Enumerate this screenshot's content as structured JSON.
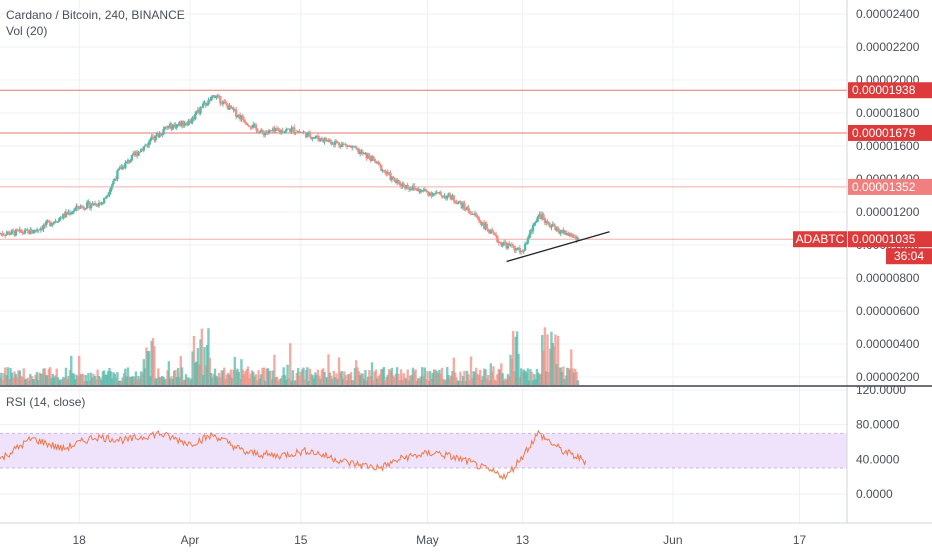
{
  "legend": {
    "main": "Cardano / Bitcoin, 240, BINANCE",
    "volume": "Vol (20)",
    "rsi": "RSI (14, close)"
  },
  "colors": {
    "up": "#53b9a9",
    "down": "#f08f86",
    "level_line": "#f2a4a4",
    "level_label": "#dd3b3b",
    "rsi_line": "#f0784a",
    "rsi_band": "#efe3fb",
    "grid": "#eef0f3",
    "axis_text": "#4a4f5a"
  },
  "price_axis_labels": [
    "0.00002400",
    "0.00002200",
    "0.00002000",
    "0.00001800",
    "0.00001600",
    "0.00001400",
    "0.00001200",
    "0.00001000",
    "0.00000800",
    "0.00000600",
    "0.00000400",
    "0.00000200"
  ],
  "rsi_axis_labels": [
    "120.0000",
    "80.0000",
    "40.0000",
    "0.0000"
  ],
  "time_axis_labels": [
    "18",
    "Apr",
    "15",
    "May",
    "13",
    "Jun",
    "17"
  ],
  "price_levels": [
    {
      "value": "0.00001938",
      "style": "solid"
    },
    {
      "value": "0.00001679",
      "style": "solid"
    },
    {
      "value": "0.00001352",
      "style": "light"
    },
    {
      "value": "0.00001035",
      "style": "current"
    }
  ],
  "current": {
    "symbol": "ADABTC",
    "price": "0.00001035",
    "countdown": "36:04"
  },
  "chart_data": {
    "type": "candlestick",
    "title": "Cardano / Bitcoin, 240, BINANCE",
    "x_range": [
      "2019-03-08",
      "2019-06-23"
    ],
    "price_ylim": [
      1.5e-06,
      2.47e-05
    ],
    "approx_close_path": [
      {
        "date": "2019-03-08",
        "close": 1.07e-05
      },
      {
        "date": "2019-03-12",
        "close": 1.08e-05
      },
      {
        "date": "2019-03-15",
        "close": 1.15e-05
      },
      {
        "date": "2019-03-18",
        "close": 1.23e-05
      },
      {
        "date": "2019-03-21",
        "close": 1.26e-05
      },
      {
        "date": "2019-03-23",
        "close": 1.45e-05
      },
      {
        "date": "2019-03-26",
        "close": 1.59e-05
      },
      {
        "date": "2019-03-29",
        "close": 1.71e-05
      },
      {
        "date": "2019-04-01",
        "close": 1.75e-05
      },
      {
        "date": "2019-04-04",
        "close": 1.91e-05
      },
      {
        "date": "2019-04-07",
        "close": 1.79e-05
      },
      {
        "date": "2019-04-10",
        "close": 1.68e-05
      },
      {
        "date": "2019-04-14",
        "close": 1.7e-05
      },
      {
        "date": "2019-04-17",
        "close": 1.65e-05
      },
      {
        "date": "2019-04-21",
        "close": 1.6e-05
      },
      {
        "date": "2019-04-24",
        "close": 1.52e-05
      },
      {
        "date": "2019-04-27",
        "close": 1.38e-05
      },
      {
        "date": "2019-04-30",
        "close": 1.33e-05
      },
      {
        "date": "2019-05-04",
        "close": 1.29e-05
      },
      {
        "date": "2019-05-07",
        "close": 1.18e-05
      },
      {
        "date": "2019-05-10",
        "close": 1.02e-05
      },
      {
        "date": "2019-05-13",
        "close": 9.6e-06
      },
      {
        "date": "2019-05-15",
        "close": 1.19e-05
      },
      {
        "date": "2019-05-17",
        "close": 1.1e-05
      },
      {
        "date": "2019-05-20",
        "close": 1.04e-05
      }
    ],
    "trendline": [
      {
        "date": "2019-05-11",
        "price": 9e-06
      },
      {
        "date": "2019-05-24",
        "price": 1.08e-05
      }
    ],
    "volume_peak_dates": [
      "2019-03-27",
      "2019-04-02",
      "2019-04-03",
      "2019-05-12",
      "2019-05-16",
      "2019-05-17"
    ],
    "rsi": {
      "ylim": [
        -10,
        120
      ],
      "overbought": 70,
      "oversold": 30,
      "approx_path": [
        {
          "date": "2019-03-08",
          "value": 40
        },
        {
          "date": "2019-03-12",
          "value": 64
        },
        {
          "date": "2019-03-16",
          "value": 52
        },
        {
          "date": "2019-03-20",
          "value": 66
        },
        {
          "date": "2019-03-24",
          "value": 62
        },
        {
          "date": "2019-03-28",
          "value": 70
        },
        {
          "date": "2019-04-01",
          "value": 58
        },
        {
          "date": "2019-04-04",
          "value": 68
        },
        {
          "date": "2019-04-08",
          "value": 48
        },
        {
          "date": "2019-04-12",
          "value": 44
        },
        {
          "date": "2019-04-16",
          "value": 50
        },
        {
          "date": "2019-04-21",
          "value": 36
        },
        {
          "date": "2019-04-25",
          "value": 30
        },
        {
          "date": "2019-04-28",
          "value": 42
        },
        {
          "date": "2019-05-02",
          "value": 48
        },
        {
          "date": "2019-05-06",
          "value": 38
        },
        {
          "date": "2019-05-09",
          "value": 26
        },
        {
          "date": "2019-05-11",
          "value": 20
        },
        {
          "date": "2019-05-13",
          "value": 44
        },
        {
          "date": "2019-05-15",
          "value": 70
        },
        {
          "date": "2019-05-18",
          "value": 50
        },
        {
          "date": "2019-05-21",
          "value": 38
        }
      ]
    }
  }
}
